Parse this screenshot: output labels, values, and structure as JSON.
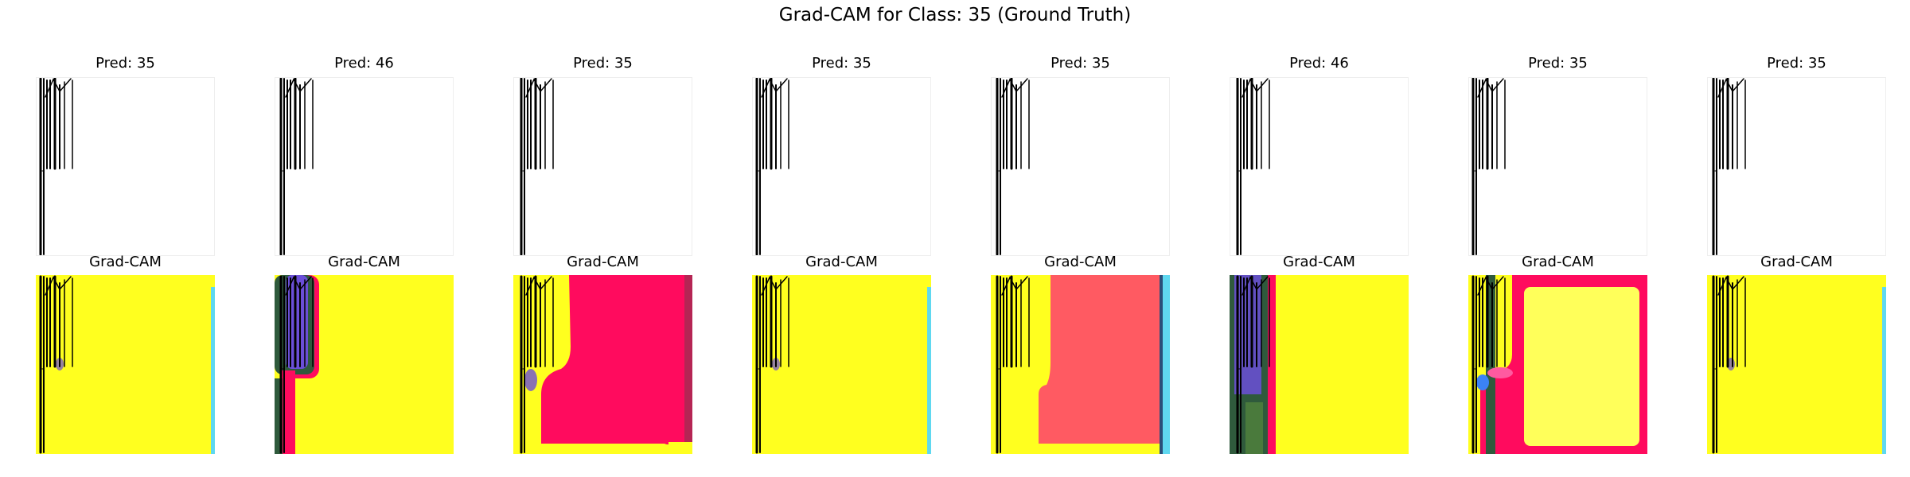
{
  "figure": {
    "title": "Grad-CAM for Class: 35 (Ground Truth)"
  },
  "panels": [
    {
      "pred_label": "Pred: 35",
      "cam_label": "Grad-CAM",
      "heatmap": "yellow-dominant"
    },
    {
      "pred_label": "Pred: 46",
      "cam_label": "Grad-CAM",
      "heatmap": "yellow-with-green-purple-left-band"
    },
    {
      "pred_label": "Pred: 35",
      "cam_label": "Grad-CAM",
      "heatmap": "magenta-block-right"
    },
    {
      "pred_label": "Pred: 35",
      "cam_label": "Grad-CAM",
      "heatmap": "yellow-dominant"
    },
    {
      "pred_label": "Pred: 35",
      "cam_label": "Grad-CAM",
      "heatmap": "salmon-block-right"
    },
    {
      "pred_label": "Pred: 46",
      "cam_label": "Grad-CAM",
      "heatmap": "yellow-with-dark-left-band"
    },
    {
      "pred_label": "Pred: 35",
      "cam_label": "Grad-CAM",
      "heatmap": "magenta-frame-with-yellow-center"
    },
    {
      "pred_label": "Pred: 35",
      "cam_label": "Grad-CAM",
      "heatmap": "yellow-dominant"
    }
  ],
  "colors": {
    "yellow": "#ffff1f",
    "magenta": "#ff0b5e",
    "salmon": "#ff5a62",
    "light_yellow": "#ffff5a",
    "dark_green": "#2f5a3c",
    "purple": "#6b4fd8",
    "cyan": "#5fd8f0"
  }
}
